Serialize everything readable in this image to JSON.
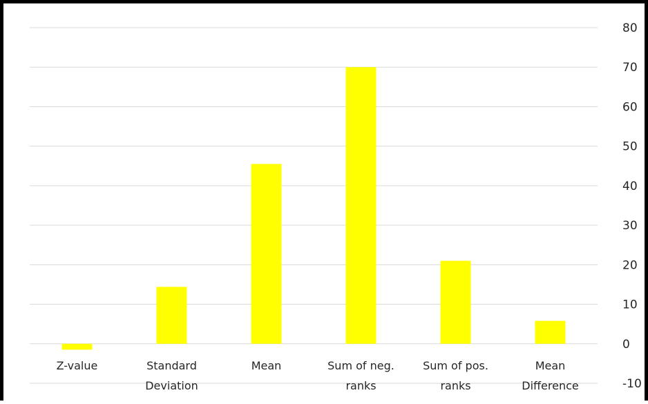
{
  "chart_data": {
    "type": "bar",
    "categories": [
      [
        "Z-value"
      ],
      [
        "Standard",
        "Deviation"
      ],
      [
        "Mean"
      ],
      [
        "Sum of neg.",
        "ranks"
      ],
      [
        "Sum of pos.",
        "ranks"
      ],
      [
        "Mean",
        "Difference"
      ]
    ],
    "values": [
      -1.5,
      14.4,
      45.5,
      70,
      21,
      5.8
    ],
    "ylim": [
      -10,
      80
    ],
    "yticks": [
      -10,
      0,
      10,
      20,
      30,
      40,
      50,
      60,
      70,
      80
    ],
    "yaxis_position": "right",
    "grid": true,
    "legend": "none",
    "bar_color": "#ffff00",
    "grid_color": "#d9d9d9",
    "frame_color": "#000000"
  }
}
